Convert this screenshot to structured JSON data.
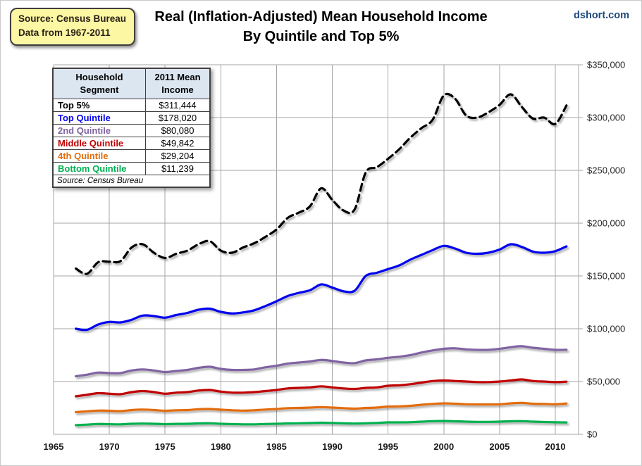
{
  "header": {
    "source_box": {
      "line1": "Source: Census Bureau",
      "line2": "Data from 1967-2011"
    },
    "title_line1": "Real (Inflation-Adjusted) Mean Household Income",
    "title_line2": "By Quintile and Top 5%",
    "watermark": "dshort.com"
  },
  "legend_table": {
    "col1_header_line1": "Household",
    "col1_header_line2": "Segment",
    "col2_header_line1": "2011 Mean",
    "col2_header_line2": "Income",
    "rows": [
      {
        "segment": "Top 5%",
        "income": "$311,444",
        "color": "#000000"
      },
      {
        "segment": "Top Quintile",
        "income": "$178,020",
        "color": "#0000ee"
      },
      {
        "segment": "2nd Quintile",
        "income": "$80,080",
        "color": "#8064a2"
      },
      {
        "segment": "Middle Quintile",
        "income": "$49,842",
        "color": "#c00000"
      },
      {
        "segment": "4th Quintile",
        "income": "$29,204",
        "color": "#e36c0a"
      },
      {
        "segment": "Bottom Quintile",
        "income": "$11,239",
        "color": "#00b050"
      }
    ],
    "footnote": "Source: Census Bureau"
  },
  "chart_data": {
    "type": "line",
    "title": "Real (Inflation-Adjusted) Mean Household Income By Quintile and Top 5%",
    "units": "2011 dollars",
    "grid": true,
    "legend_position": "top-left table",
    "xlim": [
      1965,
      2012
    ],
    "ylim": [
      0,
      350000
    ],
    "x_ticks": [
      {
        "value": 1965,
        "label": "1965"
      },
      {
        "value": 1970,
        "label": "1970"
      },
      {
        "value": 1975,
        "label": "1975"
      },
      {
        "value": 1980,
        "label": "1980"
      },
      {
        "value": 1985,
        "label": "1985"
      },
      {
        "value": 1990,
        "label": "1990"
      },
      {
        "value": 1995,
        "label": "1995"
      },
      {
        "value": 2000,
        "label": "2000"
      },
      {
        "value": 2005,
        "label": "2005"
      },
      {
        "value": 2010,
        "label": "2010"
      }
    ],
    "y_ticks": [
      {
        "value": 0,
        "label": "$0"
      },
      {
        "value": 50000,
        "label": "$50,000"
      },
      {
        "value": 100000,
        "label": "$100,000"
      },
      {
        "value": 150000,
        "label": "$150,000"
      },
      {
        "value": 200000,
        "label": "$200,000"
      },
      {
        "value": 250000,
        "label": "$250,000"
      },
      {
        "value": 300000,
        "label": "$300,000"
      },
      {
        "value": 350000,
        "label": "$350,000"
      }
    ],
    "x": [
      1967,
      1968,
      1969,
      1970,
      1971,
      1972,
      1973,
      1974,
      1975,
      1976,
      1977,
      1978,
      1979,
      1980,
      1981,
      1982,
      1983,
      1984,
      1985,
      1986,
      1987,
      1988,
      1989,
      1990,
      1991,
      1992,
      1993,
      1994,
      1995,
      1996,
      1997,
      1998,
      1999,
      2000,
      2001,
      2002,
      2003,
      2004,
      2005,
      2006,
      2007,
      2008,
      2009,
      2010,
      2011
    ],
    "series": [
      {
        "name": "Top 5%",
        "color": "#000000",
        "dashed": true,
        "values": [
          157000,
          152000,
          163000,
          163500,
          164000,
          177000,
          180000,
          172000,
          167000,
          171000,
          174000,
          180000,
          183000,
          174000,
          172000,
          177000,
          181000,
          187000,
          194000,
          205000,
          210000,
          216000,
          233000,
          222000,
          212000,
          213000,
          248000,
          253000,
          261000,
          270000,
          281000,
          290000,
          298000,
          321000,
          318000,
          302000,
          300000,
          305000,
          312000,
          322000,
          310000,
          299000,
          300000,
          294000,
          311444
        ]
      },
      {
        "name": "Top Quintile",
        "color": "#0000ee",
        "dashed": false,
        "values": [
          100000,
          99000,
          104000,
          106500,
          106000,
          108500,
          112500,
          112000,
          110500,
          113000,
          115000,
          118000,
          119000,
          116000,
          114500,
          115500,
          117500,
          121500,
          126000,
          131000,
          134000,
          136500,
          142000,
          139000,
          135500,
          136000,
          150000,
          153000,
          156500,
          160000,
          165500,
          170000,
          174500,
          178500,
          176000,
          172000,
          171000,
          172000,
          175000,
          180000,
          177500,
          173000,
          172000,
          173500,
          178020
        ]
      },
      {
        "name": "2nd Quintile",
        "color": "#8064a2",
        "dashed": false,
        "values": [
          55000,
          56500,
          58500,
          58000,
          58000,
          60500,
          61500,
          60500,
          59000,
          60000,
          61000,
          63000,
          64000,
          62000,
          61000,
          61000,
          61500,
          63500,
          65000,
          67000,
          68000,
          69000,
          70500,
          69500,
          68000,
          67500,
          70000,
          71000,
          72500,
          73500,
          75000,
          77500,
          79500,
          81000,
          81500,
          80500,
          80000,
          80000,
          81000,
          82500,
          83500,
          82000,
          81000,
          80000,
          80080
        ]
      },
      {
        "name": "Middle Quintile",
        "color": "#c00000",
        "dashed": false,
        "values": [
          36000,
          37500,
          39000,
          38500,
          38000,
          40000,
          41000,
          40000,
          38500,
          39500,
          40000,
          41500,
          42000,
          40500,
          39500,
          39500,
          40000,
          41000,
          42000,
          43500,
          44000,
          44500,
          45500,
          44500,
          43500,
          43000,
          44000,
          44500,
          46000,
          46500,
          47500,
          49000,
          50500,
          51000,
          50500,
          50000,
          49500,
          49500,
          50000,
          51000,
          52000,
          50500,
          50000,
          49500,
          49842
        ]
      },
      {
        "name": "4th Quintile",
        "color": "#e36c0a",
        "dashed": false,
        "values": [
          21000,
          21800,
          22500,
          22300,
          22000,
          23000,
          23500,
          23000,
          22300,
          22800,
          23000,
          23800,
          24000,
          23300,
          22800,
          22500,
          22800,
          23500,
          24000,
          24800,
          25000,
          25300,
          25800,
          25300,
          24800,
          24300,
          25000,
          25300,
          26300,
          26500,
          27000,
          28000,
          28800,
          29300,
          29000,
          28500,
          28300,
          28300,
          28500,
          29300,
          29800,
          29000,
          28800,
          28500,
          29204
        ]
      },
      {
        "name": "Bottom Quintile",
        "color": "#00b050",
        "dashed": false,
        "values": [
          8700,
          9200,
          9800,
          9600,
          9500,
          10000,
          10200,
          10000,
          9700,
          9900,
          10000,
          10300,
          10500,
          10000,
          9700,
          9500,
          9500,
          9800,
          10000,
          10300,
          10500,
          10700,
          11000,
          10800,
          10500,
          10200,
          10500,
          10800,
          11300,
          11300,
          11500,
          12000,
          12500,
          12700,
          12300,
          12000,
          11800,
          11800,
          12000,
          12300,
          12500,
          12000,
          11700,
          11400,
          11239
        ]
      }
    ]
  }
}
